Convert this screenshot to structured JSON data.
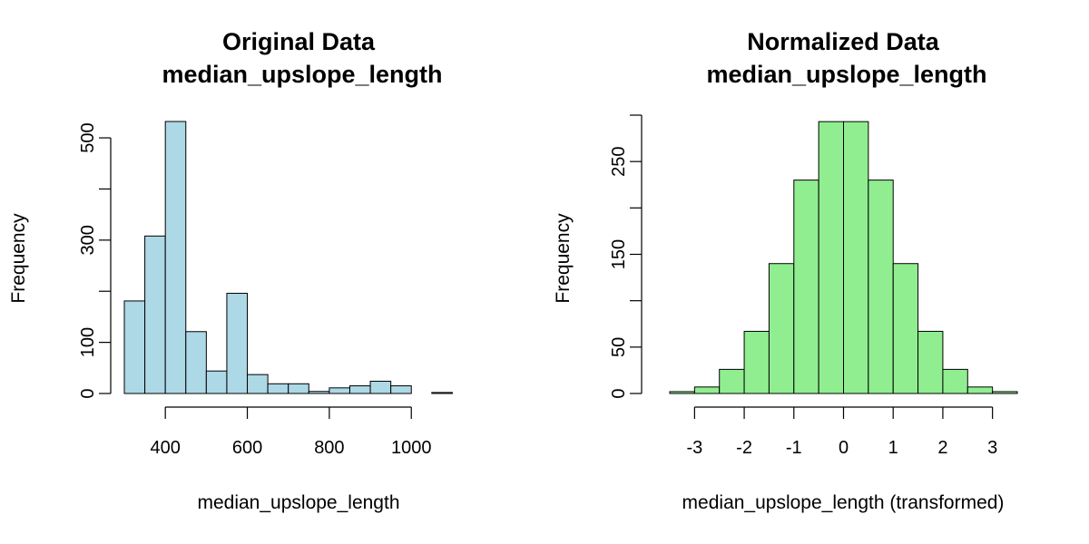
{
  "chart_data": [
    {
      "type": "bar",
      "title_line1": "Original Data",
      "title_line2": "median_upslope_length",
      "xlabel": "median_upslope_length",
      "ylabel": "Frequency",
      "bar_color": "#add8e6",
      "bins": [
        {
          "x0": 300,
          "x1": 350,
          "count": 181
        },
        {
          "x0": 350,
          "x1": 400,
          "count": 308
        },
        {
          "x0": 400,
          "x1": 450,
          "count": 532
        },
        {
          "x0": 450,
          "x1": 500,
          "count": 121
        },
        {
          "x0": 500,
          "x1": 550,
          "count": 44
        },
        {
          "x0": 550,
          "x1": 600,
          "count": 196
        },
        {
          "x0": 600,
          "x1": 650,
          "count": 37
        },
        {
          "x0": 650,
          "x1": 700,
          "count": 19
        },
        {
          "x0": 700,
          "x1": 750,
          "count": 19
        },
        {
          "x0": 750,
          "x1": 800,
          "count": 4
        },
        {
          "x0": 800,
          "x1": 850,
          "count": 11
        },
        {
          "x0": 850,
          "x1": 900,
          "count": 15
        },
        {
          "x0": 900,
          "x1": 950,
          "count": 24
        },
        {
          "x0": 950,
          "x1": 1000,
          "count": 15
        },
        {
          "x0": 1000,
          "x1": 1050,
          "count": 0
        },
        {
          "x0": 1050,
          "x1": 1100,
          "count": 2
        },
        {
          "x0": 1100,
          "x1": 1150,
          "count": 0
        }
      ],
      "xlim": [
        300,
        1150
      ],
      "ylim": [
        0,
        532
      ],
      "xticks": [
        400,
        600,
        800,
        1000
      ],
      "yticks": [
        0,
        100,
        300,
        500
      ],
      "yticks_minor": [
        200,
        400
      ]
    },
    {
      "type": "bar",
      "title_line1": "Normalized Data",
      "title_line2": "median_upslope_length",
      "xlabel": "median_upslope_length (transformed)",
      "ylabel": "Frequency",
      "bar_color": "#90ee90",
      "bins": [
        {
          "x0": -3.5,
          "x1": -3.0,
          "count": 2
        },
        {
          "x0": -3.0,
          "x1": -2.5,
          "count": 7
        },
        {
          "x0": -2.5,
          "x1": -2.0,
          "count": 26
        },
        {
          "x0": -2.0,
          "x1": -1.5,
          "count": 67
        },
        {
          "x0": -1.5,
          "x1": -1.0,
          "count": 140
        },
        {
          "x0": -1.0,
          "x1": -0.5,
          "count": 230
        },
        {
          "x0": -0.5,
          "x1": 0.0,
          "count": 293
        },
        {
          "x0": 0.0,
          "x1": 0.5,
          "count": 293
        },
        {
          "x0": 0.5,
          "x1": 1.0,
          "count": 230
        },
        {
          "x0": 1.0,
          "x1": 1.5,
          "count": 140
        },
        {
          "x0": 1.5,
          "x1": 2.0,
          "count": 67
        },
        {
          "x0": 2.0,
          "x1": 2.5,
          "count": 26
        },
        {
          "x0": 2.5,
          "x1": 3.0,
          "count": 7
        },
        {
          "x0": 3.0,
          "x1": 3.5,
          "count": 2
        }
      ],
      "xlim": [
        -3.5,
        3.5
      ],
      "ylim": [
        0,
        300
      ],
      "xticks": [
        -3,
        -2,
        -1,
        0,
        1,
        2,
        3
      ],
      "yticks": [
        0,
        50,
        150,
        250
      ],
      "yticks_minor": [
        100,
        200,
        300
      ]
    }
  ]
}
